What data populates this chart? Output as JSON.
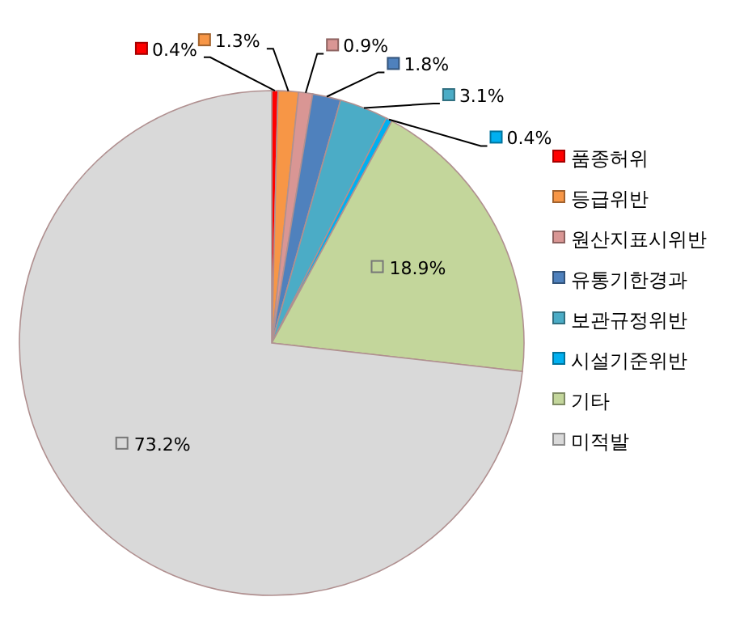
{
  "chart_data": {
    "type": "pie",
    "categories": [
      "품종허위",
      "등급위반",
      "원산지표시위반",
      "유통기한경과",
      "보관규정위반",
      "시설기준위반",
      "기타",
      "미적발"
    ],
    "values": [
      0.4,
      1.3,
      0.9,
      1.8,
      3.1,
      0.4,
      18.9,
      73.2
    ],
    "value_labels": [
      "0.4%",
      "1.3%",
      "0.9%",
      "1.8%",
      "3.1%",
      "0.4%",
      "18.9%",
      "73.2%"
    ],
    "colors": [
      "#ff0000",
      "#f79646",
      "#d99694",
      "#4f81bd",
      "#4bacc6",
      "#00b0f0",
      "#c3d69b",
      "#d9d9d9"
    ],
    "legend": "right"
  }
}
